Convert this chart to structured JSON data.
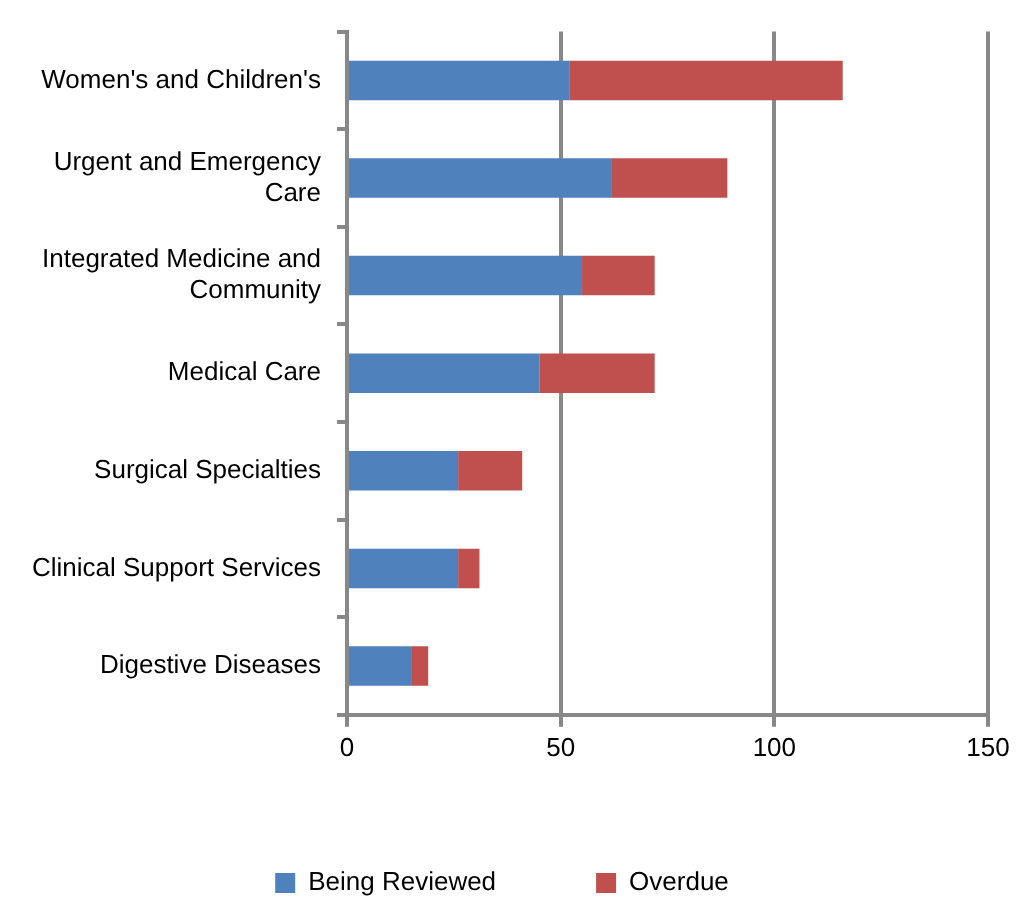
{
  "chart_data": {
    "type": "bar",
    "orientation": "horizontal",
    "stacked": true,
    "categories": [
      "Women's and Children's",
      "Urgent and Emergency Care",
      "Integrated Medicine and Community",
      "Medical Care",
      "Surgical Specialties",
      "Clinical Support Services",
      "Digestive Diseases"
    ],
    "series": [
      {
        "name": "Being Reviewed",
        "color": "#4f81bd",
        "values": [
          52,
          62,
          55,
          45,
          26,
          26,
          15
        ]
      },
      {
        "name": "Overdue",
        "color": "#c0504d",
        "values": [
          64,
          27,
          17,
          27,
          15,
          5,
          4
        ]
      }
    ],
    "xlim": [
      0,
      150
    ],
    "xticks": [
      0,
      50,
      100,
      150
    ],
    "grid": "x",
    "legend": "bottom"
  }
}
